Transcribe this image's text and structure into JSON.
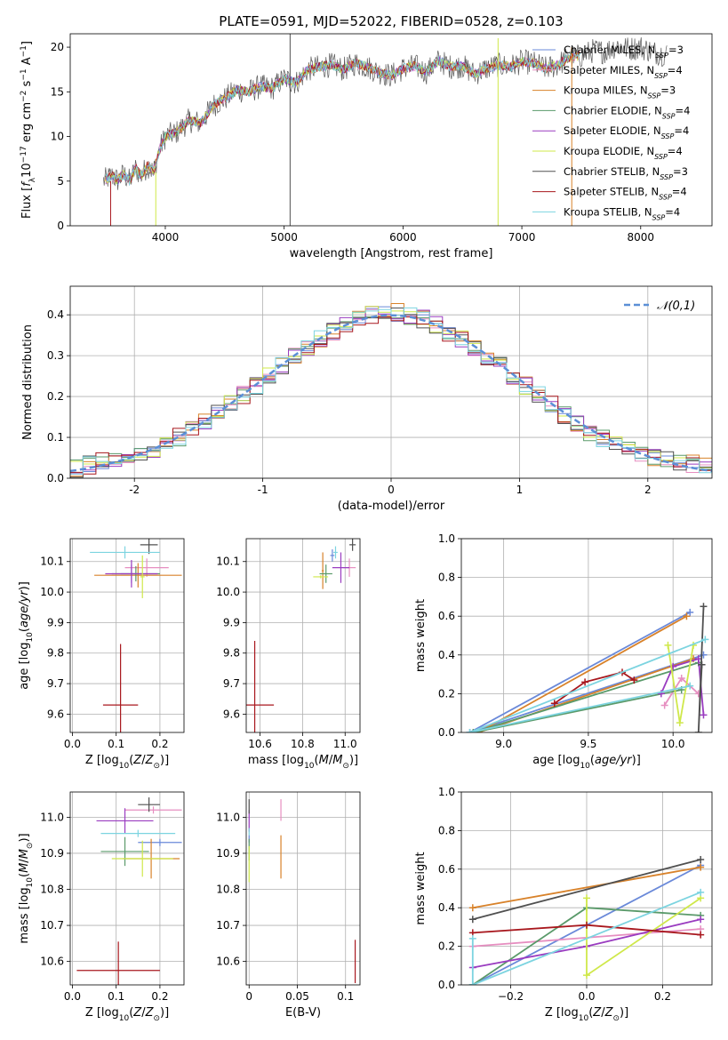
{
  "figure_title": "PLATE=0591, MJD=52022, FIBERID=0528, z=0.103",
  "legend_labels": [
    "Chabrier MILES, N_SSP=3",
    "Salpeter MILES, N_SSP=4",
    "Kroupa MILES, N_SSP=3",
    "Chabrier ELODIE, N_SSP=4",
    "Salpeter ELODIE, N_SSP=4",
    "Kroupa ELODIE, N_SSP=4",
    "Chabrier STELIB, N_SSP=3",
    "Salpeter STELIB, N_SSP=4",
    "Kroupa STELIB, N_SSP=4"
  ],
  "model_colors": [
    "#6a89d9",
    "#e68ec0",
    "#d8822a",
    "#5a9a6a",
    "#9a3cc0",
    "#cfe84a",
    "#505050",
    "#a8171d",
    "#7cd4e0"
  ],
  "chart_data": [
    {
      "type": "line",
      "title": "PLATE=0591, MJD=52022, FIBERID=0528, z=0.103",
      "xlabel": "wavelength [Angstrom, rest frame]",
      "ylabel": "Flux [f_λ 10^-17 erg cm^-2 s^-1 A^-1]",
      "xlim": [
        3200,
        8600
      ],
      "ylim": [
        0,
        21.5
      ],
      "xticks": [
        4000,
        5000,
        6000,
        7000,
        8000
      ],
      "yticks": [
        0,
        5,
        10,
        15,
        20
      ],
      "spectrum_x": [
        3480,
        3550,
        3600,
        3650,
        3700,
        3750,
        3800,
        3850,
        3900,
        3950,
        4000,
        4100,
        4200,
        4300,
        4400,
        4500,
        4600,
        4700,
        4800,
        4900,
        5000,
        5100,
        5200,
        5300,
        5400,
        5500,
        5600,
        5700,
        5800,
        5900,
        6000,
        6100,
        6200,
        6300,
        6400,
        6500,
        6600,
        6700,
        6800,
        6900,
        7000,
        7100,
        7200,
        7300,
        7400,
        7500,
        7600,
        7700,
        7800,
        7900,
        8000,
        8100,
        8200
      ],
      "spectrum_y": [
        5.0,
        5.6,
        5.1,
        5.8,
        5.0,
        6.4,
        5.6,
        6.8,
        6.0,
        8.5,
        10.0,
        10.5,
        11.8,
        11.5,
        13.5,
        14.2,
        15.2,
        15.0,
        15.6,
        15.4,
        16.5,
        16.0,
        17.5,
        17.8,
        18.0,
        17.5,
        18.2,
        17.8,
        17.2,
        16.8,
        17.6,
        17.9,
        17.2,
        18.5,
        17.8,
        17.9,
        17.0,
        17.6,
        18.0,
        17.8,
        18.4,
        18.2,
        17.6,
        18.0,
        18.9,
        19.0,
        19.6,
        19.5,
        20.2,
        19.8,
        20.0,
        19.5,
        19.2
      ],
      "series": [
        {
          "name": "Chabrier MILES, N_SSP=3"
        },
        {
          "name": "Salpeter MILES, N_SSP=4"
        },
        {
          "name": "Kroupa MILES, N_SSP=3"
        },
        {
          "name": "Chabrier ELODIE, N_SSP=4"
        },
        {
          "name": "Salpeter ELODIE, N_SSP=4"
        },
        {
          "name": "Kroupa ELODIE, N_SSP=4"
        },
        {
          "name": "Chabrier STELIB, N_SSP=3"
        },
        {
          "name": "Salpeter STELIB, N_SSP=4"
        },
        {
          "name": "Kroupa STELIB, N_SSP=4"
        }
      ],
      "legend": "upper right"
    },
    {
      "type": "step",
      "xlabel": "(data-model)/error",
      "ylabel": "Normed distribution",
      "xlim": [
        -2.5,
        2.5
      ],
      "ylim": [
        0,
        0.47
      ],
      "xticks": [
        -2,
        -1,
        0,
        1,
        2
      ],
      "yticks": [
        0.0,
        0.1,
        0.2,
        0.3,
        0.4
      ],
      "grid": true,
      "bin_width": 0.1,
      "histogram_envelope_x": [
        -2.5,
        -2.25,
        -2.0,
        -1.75,
        -1.5,
        -1.25,
        -1.0,
        -0.75,
        -0.5,
        -0.25,
        0.0,
        0.25,
        0.5,
        0.75,
        1.0,
        1.25,
        1.5,
        1.75,
        2.0,
        2.25,
        2.5
      ],
      "histogram_envelope_y": [
        0.02,
        0.04,
        0.055,
        0.08,
        0.13,
        0.18,
        0.24,
        0.3,
        0.35,
        0.39,
        0.41,
        0.39,
        0.35,
        0.3,
        0.24,
        0.18,
        0.12,
        0.08,
        0.055,
        0.04,
        0.025
      ],
      "reference_curve": {
        "name": "𝒩(0,1)",
        "mean": 0,
        "sigma": 1,
        "color": "#5b8fd6"
      },
      "legend": "upper right"
    },
    {
      "type": "scatter",
      "xlabel": "Z [log10(Z/Z⊙)]",
      "ylabel": "age [log10(age/yr)]",
      "xlim": [
        -0.005,
        0.255
      ],
      "ylim": [
        9.54,
        10.175
      ],
      "xticks": [
        0.0,
        0.1,
        0.2
      ],
      "yticks": [
        9.6,
        9.7,
        9.8,
        9.9,
        10.0,
        10.1
      ],
      "grid": true,
      "points": [
        {
          "x": 0.135,
          "y": 10.06,
          "xerr": 0.025,
          "yerr": 0.03
        },
        {
          "x": 0.17,
          "y": 10.08,
          "xerr": 0.05,
          "yerr": 0.03
        },
        {
          "x": 0.15,
          "y": 10.055,
          "xerr": 0.1,
          "yerr": 0.04
        },
        {
          "x": 0.145,
          "y": 10.06,
          "xerr": 0.055,
          "yerr": 0.025
        },
        {
          "x": 0.135,
          "y": 10.06,
          "xerr": 0.06,
          "yerr": 0.045
        },
        {
          "x": 0.16,
          "y": 10.05,
          "xerr": 0.005,
          "yerr": 0.07
        },
        {
          "x": 0.175,
          "y": 10.155,
          "xerr": 0.02,
          "yerr": 0.03
        },
        {
          "x": 0.11,
          "y": 9.63,
          "xerr": 0.04,
          "yerr": 0.2
        },
        {
          "x": 0.12,
          "y": 10.13,
          "xerr": 0.08,
          "yerr": 0.02
        }
      ]
    },
    {
      "type": "scatter",
      "xlabel": "mass [log10(M/M⊙)]",
      "ylabel": "",
      "xlim": [
        10.535,
        11.07
      ],
      "ylim": [
        9.54,
        10.175
      ],
      "xticks": [
        10.6,
        10.8,
        11.0
      ],
      "yticks": [
        9.6,
        9.7,
        9.8,
        9.9,
        10.0,
        10.1
      ],
      "grid": true,
      "points": [
        {
          "x": 10.94,
          "y": 10.12,
          "xerr": 0.01,
          "yerr": 0.02
        },
        {
          "x": 11.02,
          "y": 10.08,
          "xerr": 0.03,
          "yerr": 0.03
        },
        {
          "x": 10.895,
          "y": 10.07,
          "xerr": 0.005,
          "yerr": 0.06
        },
        {
          "x": 10.91,
          "y": 10.06,
          "xerr": 0.03,
          "yerr": 0.03
        },
        {
          "x": 10.98,
          "y": 10.08,
          "xerr": 0.04,
          "yerr": 0.05
        },
        {
          "x": 10.885,
          "y": 10.05,
          "xerr": 0.035,
          "yerr": 0.005
        },
        {
          "x": 11.035,
          "y": 10.155,
          "xerr": 0.015,
          "yerr": 0.02
        },
        {
          "x": 10.575,
          "y": 9.63,
          "xerr": 0.09,
          "yerr": 0.21
        },
        {
          "x": 10.955,
          "y": 10.13,
          "xerr": 0.01,
          "yerr": 0.02
        }
      ]
    },
    {
      "type": "line",
      "xlabel": "age [log10(age/yr)]",
      "ylabel": "mass weight",
      "xlim": [
        8.75,
        10.23
      ],
      "ylim": [
        0,
        1
      ],
      "xticks": [
        9.0,
        9.5,
        10.0
      ],
      "yticks": [
        0.0,
        0.2,
        0.4,
        0.6,
        0.8,
        1.0
      ],
      "grid": true,
      "series": [
        {
          "x": [
            10.1,
            8.8,
            10.18
          ],
          "y": [
            0.62,
            0.0,
            0.4
          ]
        },
        {
          "x": [
            9.95,
            10.05,
            10.15
          ],
          "y": [
            0.14,
            0.28,
            0.2
          ]
        },
        {
          "x": [
            10.08,
            8.85,
            10.12
          ],
          "y": [
            0.6,
            0.0,
            0.38
          ]
        },
        {
          "x": [
            10.05,
            8.82,
            10.15
          ],
          "y": [
            0.22,
            0.0,
            0.36
          ]
        },
        {
          "x": [
            9.93,
            10.0,
            10.15,
            10.18
          ],
          "y": [
            0.2,
            0.34,
            0.38,
            0.09
          ]
        },
        {
          "x": [
            9.97,
            10.04,
            10.12
          ],
          "y": [
            0.45,
            0.05,
            0.45
          ]
        },
        {
          "x": [
            10.17,
            10.15,
            10.18
          ],
          "y": [
            0.35,
            0.0,
            0.65
          ]
        },
        {
          "x": [
            9.3,
            9.48,
            9.7,
            9.77
          ],
          "y": [
            0.15,
            0.26,
            0.31,
            0.27
          ]
        },
        {
          "x": [
            10.19,
            8.8,
            10.1
          ],
          "y": [
            0.48,
            0.0,
            0.24
          ]
        }
      ]
    },
    {
      "type": "scatter",
      "xlabel": "Z [log10(Z/Z⊙)]",
      "ylabel": "mass [log10(M/M⊙)]",
      "xlim": [
        -0.005,
        0.255
      ],
      "ylim": [
        10.535,
        11.07
      ],
      "xticks": [
        0.0,
        0.1,
        0.2
      ],
      "yticks": [
        10.6,
        10.7,
        10.8,
        10.9,
        11.0
      ],
      "grid": true,
      "points": [
        {
          "x": 0.2,
          "y": 10.93,
          "xerr": 0.05,
          "yerr": 0.01
        },
        {
          "x": 0.185,
          "y": 11.02,
          "xerr": 0.065,
          "yerr": 0.01
        },
        {
          "x": 0.18,
          "y": 10.885,
          "xerr": 0.065,
          "yerr": 0.055
        },
        {
          "x": 0.12,
          "y": 10.905,
          "xerr": 0.055,
          "yerr": 0.04
        },
        {
          "x": 0.12,
          "y": 10.99,
          "xerr": 0.065,
          "yerr": 0.035
        },
        {
          "x": 0.16,
          "y": 10.885,
          "xerr": 0.07,
          "yerr": 0.05
        },
        {
          "x": 0.175,
          "y": 11.035,
          "xerr": 0.025,
          "yerr": 0.02
        },
        {
          "x": 0.105,
          "y": 10.575,
          "xerr": 0.095,
          "yerr": 0.08
        },
        {
          "x": 0.15,
          "y": 10.955,
          "xerr": 0.085,
          "yerr": 0.01
        }
      ]
    },
    {
      "type": "scatter",
      "xlabel": "E(B-V)",
      "ylabel": "",
      "xlim": [
        -0.003,
        0.115
      ],
      "ylim": [
        10.535,
        11.07
      ],
      "xticks": [
        0.0,
        0.05,
        0.1
      ],
      "yticks": [
        10.6,
        10.7,
        10.8,
        10.9,
        11.0
      ],
      "grid": true,
      "points": [
        {
          "x": 0.0,
          "y": 10.94,
          "xerr": 0,
          "yerr": 0.01
        },
        {
          "x": 0.033,
          "y": 11.02,
          "xerr": 0,
          "yerr": 0.03
        },
        {
          "x": 0.033,
          "y": 10.89,
          "xerr": 0,
          "yerr": 0.06
        },
        {
          "x": 0.0,
          "y": 10.91,
          "xerr": 0,
          "yerr": 0.03
        },
        {
          "x": 0.0,
          "y": 10.99,
          "xerr": 0,
          "yerr": 0.03
        },
        {
          "x": 0.0,
          "y": 10.87,
          "xerr": 0,
          "yerr": 0.05
        },
        {
          "x": 0.0,
          "y": 11.03,
          "xerr": 0,
          "yerr": 0.02
        },
        {
          "x": 0.11,
          "y": 10.6,
          "xerr": 0,
          "yerr": 0.06
        },
        {
          "x": 0.0,
          "y": 10.96,
          "xerr": 0,
          "yerr": 0.01
        }
      ]
    },
    {
      "type": "line",
      "xlabel": "Z [log10(Z/Z⊙)]",
      "ylabel": "mass weight",
      "xlim": [
        -0.33,
        0.33
      ],
      "ylim": [
        0,
        1
      ],
      "xticks": [
        -0.2,
        0.0,
        0.2
      ],
      "yticks": [
        0.0,
        0.2,
        0.4,
        0.6,
        0.8,
        1.0
      ],
      "grid": true,
      "series": [
        {
          "x": [
            -0.3,
            0.3
          ],
          "y": [
            0.0,
            0.62
          ]
        },
        {
          "x": [
            -0.3,
            0.3
          ],
          "y": [
            0.2,
            0.29
          ]
        },
        {
          "x": [
            -0.3,
            0.3
          ],
          "y": [
            0.4,
            0.61
          ]
        },
        {
          "x": [
            -0.3,
            0.0,
            0.3
          ],
          "y": [
            0.0,
            0.4,
            0.36
          ]
        },
        {
          "x": [
            -0.3,
            0.0,
            0.3
          ],
          "y": [
            0.09,
            0.2,
            0.34
          ]
        },
        {
          "x": [
            0.0,
            0.0,
            0.3
          ],
          "y": [
            0.45,
            0.05,
            0.45
          ]
        },
        {
          "x": [
            -0.3,
            0.3
          ],
          "y": [
            0.34,
            0.65
          ]
        },
        {
          "x": [
            -0.3,
            0.0,
            0.3
          ],
          "y": [
            0.27,
            0.31,
            0.26
          ]
        },
        {
          "x": [
            -0.3,
            -0.3,
            0.3
          ],
          "y": [
            0.24,
            0.0,
            0.48
          ]
        }
      ]
    }
  ]
}
